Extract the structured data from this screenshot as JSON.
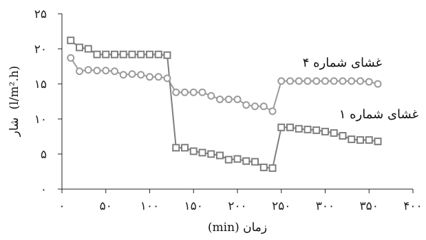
{
  "chart_data": {
    "type": "line",
    "xlabel": "زمان (min)",
    "ylabel": "شار (l/m².h)",
    "ylabel_parts": {
      "fa": "شار",
      "unit": "(l/m².h)"
    },
    "xlim": [
      0,
      400
    ],
    "ylim": [
      0,
      25
    ],
    "x_ticks": [
      0,
      50,
      100,
      150,
      200,
      250,
      300,
      350,
      400
    ],
    "x_tick_labels": [
      "۰",
      "۵۰",
      "۱۰۰",
      "۱۵۰",
      "۲۰۰",
      "۲۵۰",
      "۳۰۰",
      "۳۵۰",
      "۴۰۰"
    ],
    "y_ticks": [
      0,
      5,
      10,
      15,
      20,
      25
    ],
    "y_tick_labels": [
      "۰",
      "۵",
      "۱۰",
      "۱۵",
      "۲۰",
      "۲۵"
    ],
    "grid": false,
    "series": [
      {
        "name": "غشای شماره ۴",
        "marker": "circle",
        "color": "#9a9a9a",
        "x": [
          10,
          20,
          30,
          40,
          50,
          60,
          70,
          80,
          90,
          100,
          110,
          120,
          130,
          140,
          150,
          160,
          170,
          180,
          190,
          200,
          210,
          220,
          230,
          240,
          250,
          260,
          270,
          280,
          290,
          300,
          310,
          320,
          330,
          340,
          350,
          360
        ],
        "y": [
          18.7,
          16.8,
          17.0,
          16.9,
          16.9,
          16.8,
          16.3,
          16.4,
          16.3,
          16.0,
          16.0,
          15.8,
          13.8,
          13.8,
          13.8,
          13.8,
          13.3,
          12.8,
          12.8,
          12.8,
          12.0,
          11.8,
          11.8,
          11.1,
          15.4,
          15.4,
          15.4,
          15.4,
          15.4,
          15.4,
          15.4,
          15.4,
          15.4,
          15.4,
          15.3,
          15.0
        ]
      },
      {
        "name": "غشای شماره ۱",
        "marker": "square",
        "color": "#7d7d7d",
        "x": [
          10,
          20,
          30,
          40,
          50,
          60,
          70,
          80,
          90,
          100,
          110,
          120,
          130,
          140,
          150,
          160,
          170,
          180,
          190,
          200,
          210,
          220,
          230,
          240,
          250,
          260,
          270,
          280,
          290,
          300,
          310,
          320,
          330,
          340,
          350,
          360
        ],
        "y": [
          21.2,
          20.2,
          20.0,
          19.2,
          19.2,
          19.2,
          19.2,
          19.2,
          19.2,
          19.2,
          19.2,
          19.1,
          5.9,
          5.9,
          5.4,
          5.2,
          5.0,
          4.8,
          4.2,
          4.3,
          4.0,
          3.9,
          3.1,
          3.0,
          8.8,
          8.8,
          8.6,
          8.5,
          8.4,
          8.2,
          8.0,
          7.6,
          7.1,
          7.0,
          7.0,
          6.8
        ]
      }
    ],
    "annotations": [
      {
        "text": "غشای شماره ۴",
        "series": 0
      },
      {
        "text": "غشای شماره ۱",
        "series": 1
      }
    ]
  }
}
